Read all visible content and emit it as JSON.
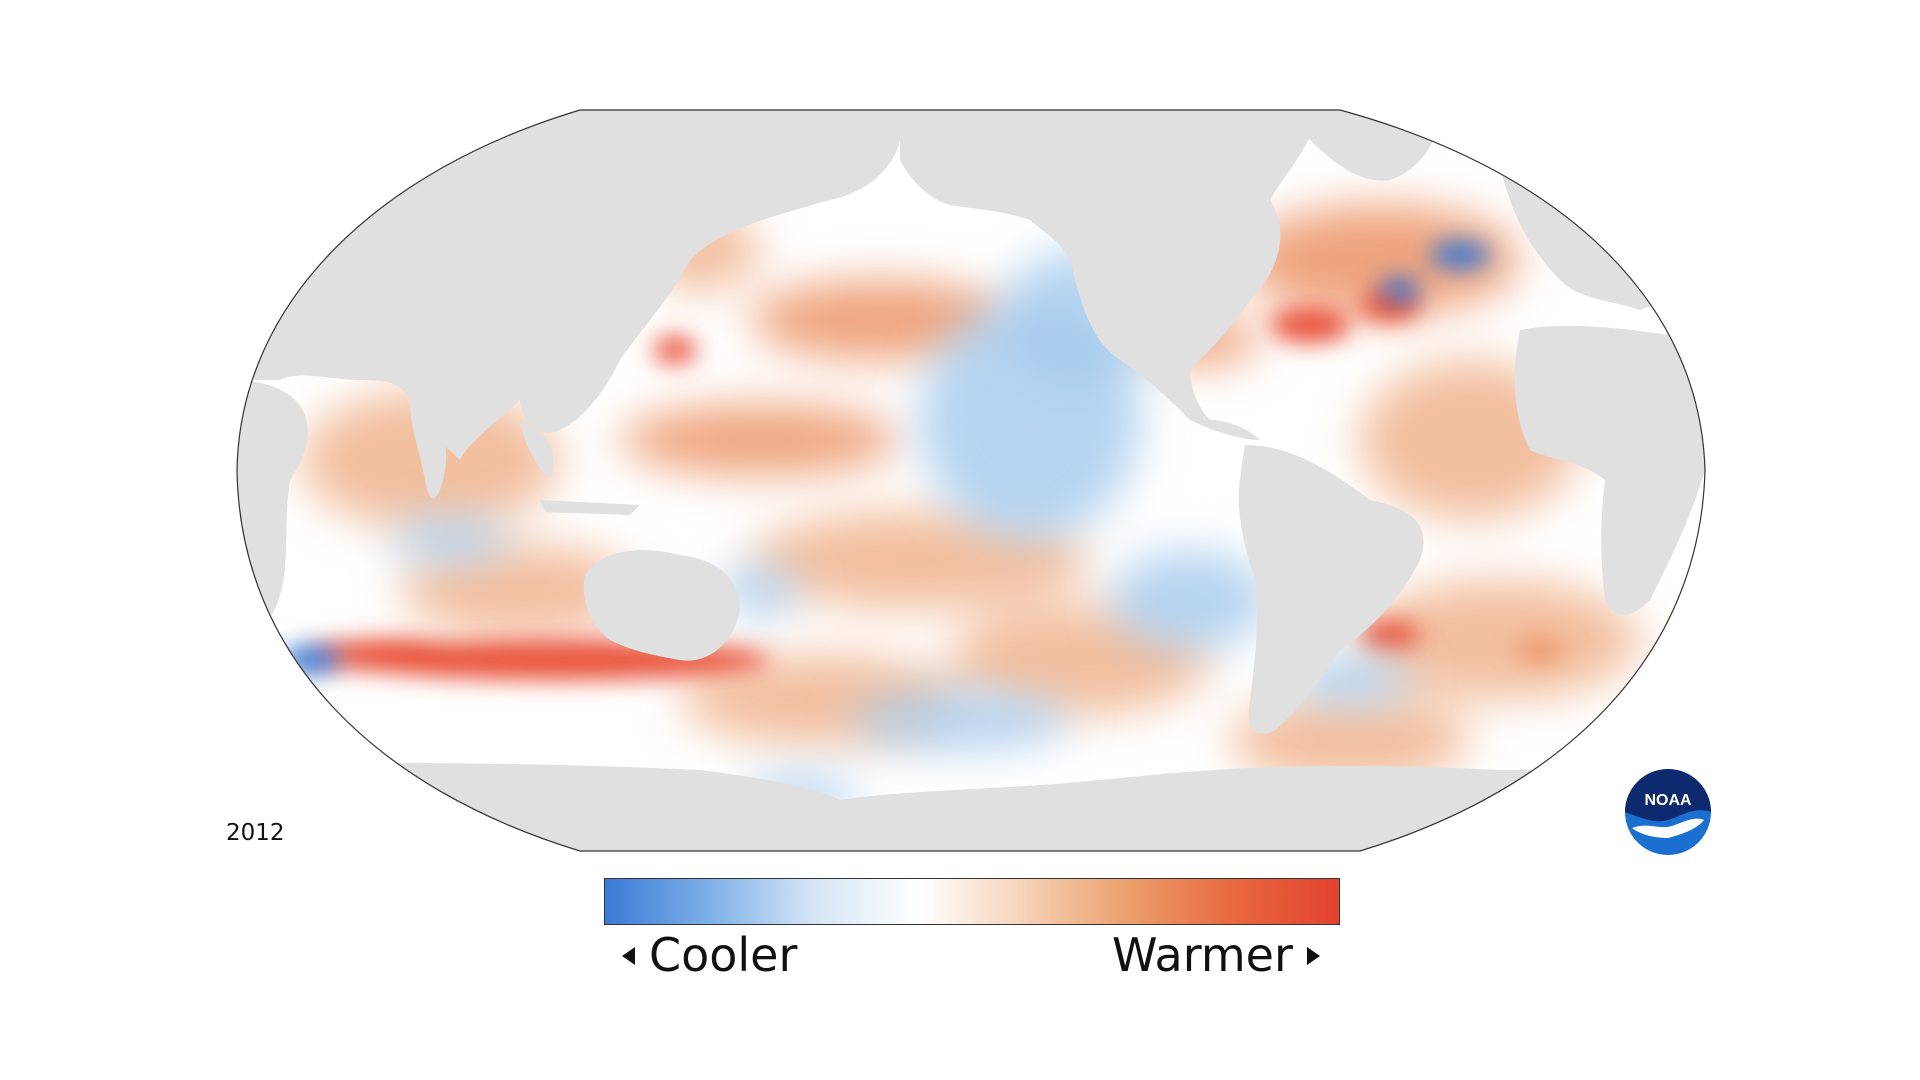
{
  "map": {
    "title": "",
    "projection": "Robinson",
    "center_longitude": 180,
    "variable_shown": "sea surface temperature anomaly",
    "year": "2012",
    "colors": {
      "land": "#e0e0e0",
      "ocean_neutral": "#ffffff",
      "cool_strong": "#2e75d6",
      "cool_light": "#a9cdee",
      "warm_light": "#f0b48e",
      "warm_strong": "#e84a2f",
      "outline": "#333333"
    },
    "legend": {
      "cooler_label": "Cooler",
      "warmer_label": "Warmer",
      "gradient_stops": [
        "#3a7ad6",
        "#7fb0e8",
        "#d6e6f7",
        "#ffffff",
        "#f6d2b8",
        "#eb9f6c",
        "#e8683f",
        "#e2422e"
      ]
    },
    "logo": {
      "text": "NOAA",
      "icon": "noaa-logo"
    }
  }
}
